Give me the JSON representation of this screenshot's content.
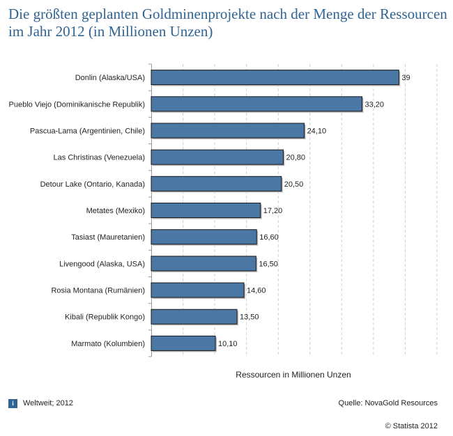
{
  "title": "Die größten geplanten Goldminenprojekte nach der Menge der Ressourcen im Jahr 2012 (in Millionen Unzen)",
  "footer": {
    "info_icon": "i",
    "region": "Weltweit; 2012",
    "source": "Quelle: NovaGold Resources",
    "copyright": "© Statista 2012"
  },
  "colors": {
    "bar": "#4a77a3",
    "bar_border": "#1a1a1a",
    "title": "#2f6494"
  },
  "chart_data": {
    "type": "bar",
    "orientation": "horizontal",
    "categories": [
      "Donlin (Alaska/USA)",
      "Pueblo Viejo (Dominikanische Republik)",
      "Pascua-Lama (Argentinien, Chile)",
      "Las Christinas (Venezuela)",
      "Detour Lake (Ontario, Kanada)",
      "Metates (Mexiko)",
      "Tasiast (Mauretanien)",
      "Livengood (Alaska, USA)",
      "Rosia Montana (Rumänien)",
      "Kibali (Republik Kongo)",
      "Marmato (Kolumbien)"
    ],
    "values": [
      39,
      33.2,
      24.1,
      20.8,
      20.5,
      17.2,
      16.6,
      16.5,
      14.6,
      13.5,
      10.1
    ],
    "value_labels": [
      "39",
      "33,20",
      "24,10",
      "20,80",
      "20,50",
      "17,20",
      "16,60",
      "16,50",
      "14,60",
      "13,50",
      "10,10"
    ],
    "xlabel": "Ressourcen in Millionen Unzen",
    "xlim": [
      0,
      45
    ],
    "gridlines": [
      5,
      10,
      15,
      20,
      25,
      30,
      35,
      40,
      45
    ],
    "grid": true,
    "grid_style": "dashed vertical"
  }
}
